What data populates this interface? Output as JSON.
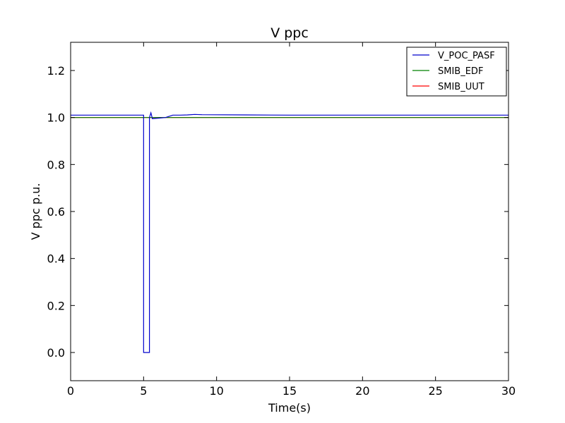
{
  "chart_data": {
    "type": "line",
    "title": "V ppc",
    "xlabel": "Time(s)",
    "ylabel": "V ppc p.u.",
    "xlim": [
      0,
      30
    ],
    "ylim": [
      -0.12,
      1.32
    ],
    "xticks": [
      0,
      5,
      10,
      15,
      20,
      25,
      30
    ],
    "yticks": [
      0.0,
      0.2,
      0.4,
      0.6,
      0.8,
      1.0,
      1.2
    ],
    "xtick_labels": [
      "0",
      "5",
      "10",
      "15",
      "20",
      "25",
      "30"
    ],
    "ytick_labels": [
      "0.0",
      "0.2",
      "0.4",
      "0.6",
      "0.8",
      "1.0",
      "1.2"
    ],
    "grid": false,
    "legend_position": "top-right",
    "series": [
      {
        "name": "V_POC_PASF",
        "color": "#0000cc",
        "x": [
          0,
          5.0,
          5.0,
          5.4,
          5.4,
          5.5,
          5.6,
          6.0,
          6.5,
          7.0,
          7.5,
          8.0,
          8.5,
          9.0,
          12.0,
          15.0,
          30.0
        ],
        "y": [
          1.01,
          1.01,
          0.0,
          0.0,
          1.0,
          1.02,
          0.995,
          0.997,
          1.0,
          1.01,
          1.01,
          1.011,
          1.013,
          1.012,
          1.011,
          1.01,
          1.01
        ]
      },
      {
        "name": "SMIB_EDF",
        "color": "#008000",
        "x": [
          0,
          30
        ],
        "y": [
          1.0,
          1.0
        ]
      },
      {
        "name": "SMIB_UUT",
        "color": "#ff0000",
        "x": [
          0,
          30
        ],
        "y": [
          1.0,
          1.0
        ]
      }
    ]
  }
}
